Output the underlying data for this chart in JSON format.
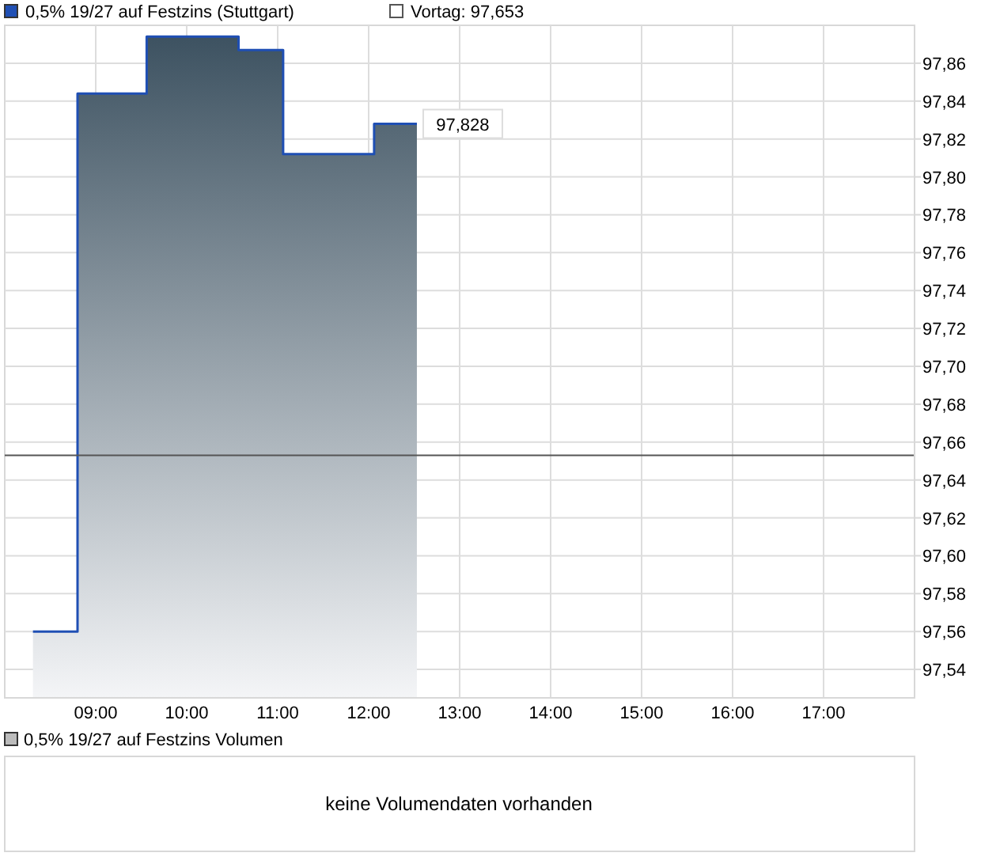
{
  "chart_data": [
    {
      "type": "area",
      "x": [
        8.31,
        8.8,
        8.8,
        9.56,
        9.56,
        10.57,
        10.57,
        11.06,
        11.06,
        12.06,
        12.06,
        12.53
      ],
      "series": [
        {
          "name": "0,5% 19/27 auf Festzins (Stuttgart)",
          "color": "#1f4fb4",
          "values": [
            97.56,
            97.56,
            97.844,
            97.844,
            97.874,
            97.874,
            97.867,
            97.867,
            97.812,
            97.812,
            97.828,
            97.828
          ]
        }
      ],
      "annotations": [
        {
          "text": "97,828",
          "x": 12.53,
          "y": 97.828
        }
      ],
      "xlim": [
        8,
        18
      ],
      "xticks": [
        {
          "value": 9,
          "label": "09:00"
        },
        {
          "value": 10,
          "label": "10:00"
        },
        {
          "value": 11,
          "label": "11:00"
        },
        {
          "value": 12,
          "label": "12:00"
        },
        {
          "value": 13,
          "label": "13:00"
        },
        {
          "value": 14,
          "label": "14:00"
        },
        {
          "value": 15,
          "label": "15:00"
        },
        {
          "value": 16,
          "label": "16:00"
        },
        {
          "value": 17,
          "label": "17:00"
        }
      ],
      "ylim": [
        97.525,
        97.88
      ],
      "yticks": [
        {
          "value": 97.54,
          "label": "97,54"
        },
        {
          "value": 97.56,
          "label": "97,56"
        },
        {
          "value": 97.58,
          "label": "97,58"
        },
        {
          "value": 97.6,
          "label": "97,60"
        },
        {
          "value": 97.62,
          "label": "97,62"
        },
        {
          "value": 97.64,
          "label": "97,64"
        },
        {
          "value": 97.66,
          "label": "97,66"
        },
        {
          "value": 97.68,
          "label": "97,68"
        },
        {
          "value": 97.7,
          "label": "97,70"
        },
        {
          "value": 97.72,
          "label": "97,72"
        },
        {
          "value": 97.74,
          "label": "97,74"
        },
        {
          "value": 97.76,
          "label": "97,76"
        },
        {
          "value": 97.78,
          "label": "97,78"
        },
        {
          "value": 97.8,
          "label": "97,80"
        },
        {
          "value": 97.82,
          "label": "97,82"
        },
        {
          "value": 97.84,
          "label": "97,84"
        },
        {
          "value": 97.86,
          "label": "97,86"
        }
      ],
      "ref_lines": [
        {
          "axis": "y",
          "value": 97.653,
          "label": "Vortag: 97,653",
          "color": "#555555"
        }
      ],
      "grid": true,
      "legend": "top left"
    },
    {
      "type": "other",
      "title": "0,5% 19/27 auf Festzins Volumen",
      "annotations": [
        "keine Volumendaten vorhanden"
      ]
    }
  ]
}
